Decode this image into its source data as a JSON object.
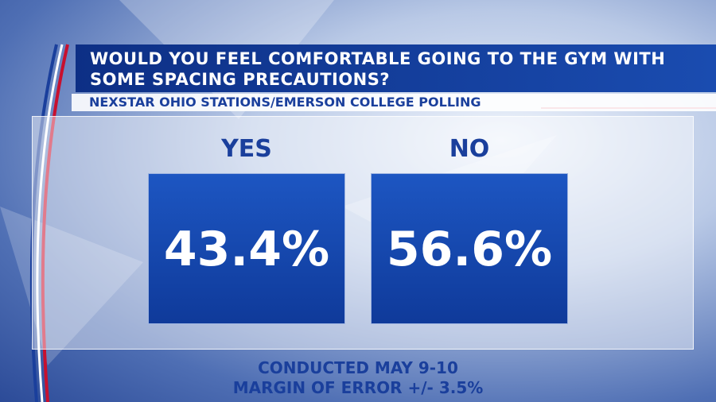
{
  "header": {
    "title": "WOULD YOU FEEL COMFORTABLE GOING TO THE GYM WITH SOME SPACING PRECAUTIONS?",
    "subtitle": "NEXSTAR OHIO STATIONS/EMERSON COLLEGE POLLING"
  },
  "answers": [
    {
      "label": "YES",
      "value": "43.4%"
    },
    {
      "label": "NO",
      "value": "56.6%"
    }
  ],
  "footer": {
    "line1": "CONDUCTED MAY 9-10",
    "line2": "MARGIN OF ERROR +/- 3.5%"
  }
}
